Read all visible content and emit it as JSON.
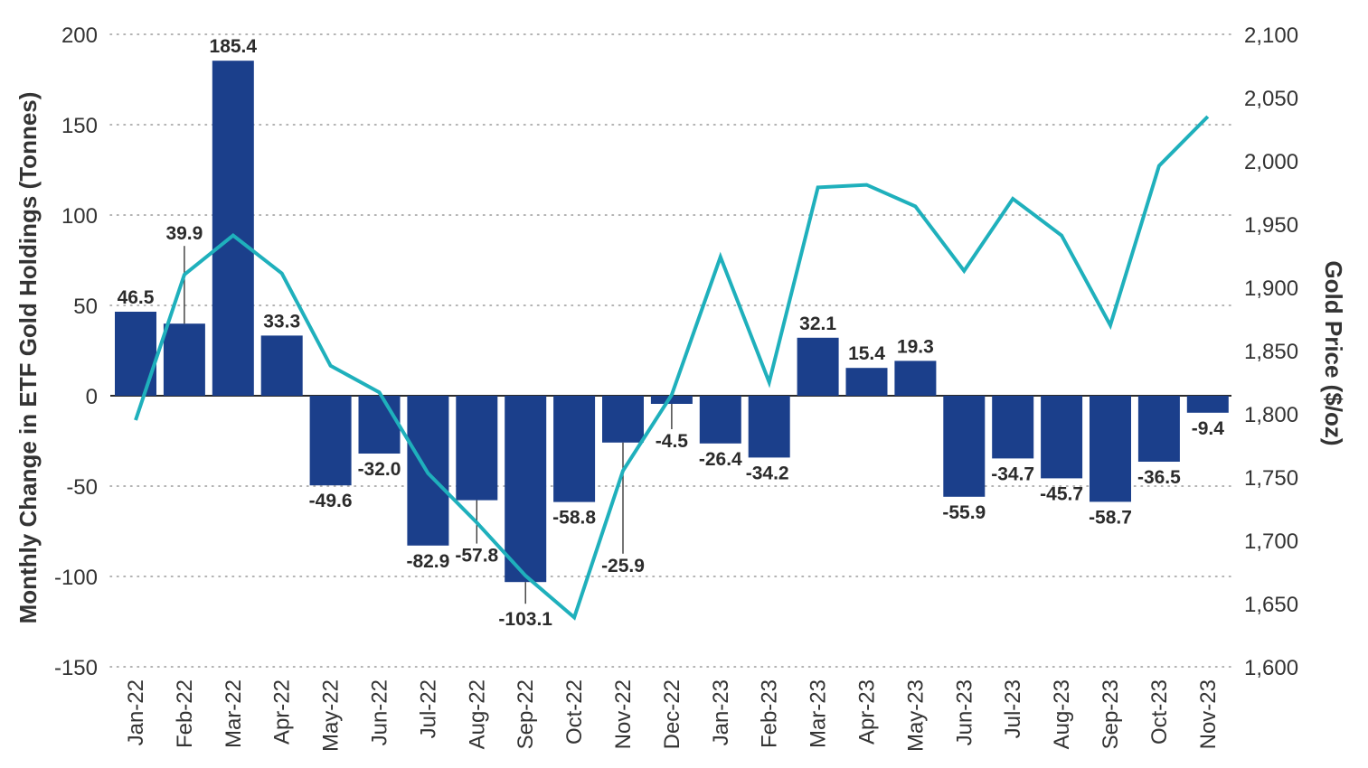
{
  "chart_data": {
    "type": "bar",
    "categories": [
      "Jan-22",
      "Feb-22",
      "Mar-22",
      "Apr-22",
      "May-22",
      "Jun-22",
      "Jul-22",
      "Aug-22",
      "Sep-22",
      "Oct-22",
      "Nov-22",
      "Dec-22",
      "Jan-23",
      "Feb-23",
      "Mar-23",
      "Apr-23",
      "May-23",
      "Jun-23",
      "Jul-23",
      "Aug-23",
      "Sep-23",
      "Oct-23",
      "Nov-23"
    ],
    "series": [
      {
        "type": "bar",
        "axis": "left",
        "color": "#1b3f8b",
        "values": [
          46.5,
          39.9,
          185.4,
          33.3,
          -49.6,
          -32.0,
          -82.9,
          -57.8,
          -103.1,
          -58.8,
          -25.9,
          -4.5,
          -26.4,
          -34.2,
          32.1,
          15.4,
          19.3,
          -55.9,
          -34.7,
          -45.7,
          -58.7,
          -36.5,
          -9.4
        ],
        "labels": [
          "46.5",
          "39.9",
          "185.4",
          "33.3",
          "-49.6",
          "-32.0",
          "-82.9",
          "-57.8",
          "-103.1",
          "-58.8",
          "-25.9",
          "-4.5",
          "-26.4",
          "-34.2",
          "32.1",
          "15.4",
          "19.3",
          "-55.9",
          "-34.7",
          "-45.7",
          "-58.7",
          "-36.5",
          "-9.4"
        ]
      },
      {
        "type": "line",
        "axis": "right",
        "color": "#1fb0bc",
        "values": [
          1795,
          1910,
          1941,
          1911,
          1838,
          1817,
          1753,
          1714,
          1672,
          1639,
          1755,
          1815,
          1924,
          1825,
          1979,
          1981,
          1964,
          1913,
          1970,
          1941,
          1870,
          1996,
          2035
        ]
      }
    ],
    "y_left": {
      "label": "Monthly Change in ETF Gold Holdings (Tonnes)",
      "lim": [
        -150,
        200
      ],
      "ticks": [
        "-150",
        "-100",
        "-50",
        "0",
        "50",
        "100",
        "150",
        "200"
      ]
    },
    "y_right": {
      "label": "Gold Price ($/oz)",
      "lim": [
        1600,
        2100
      ],
      "ticks": [
        "1,600",
        "1,650",
        "1,700",
        "1,750",
        "1,800",
        "1,850",
        "1,900",
        "1,950",
        "2,000",
        "2,050",
        "2,100"
      ]
    },
    "grid": "horizontal-dotted",
    "legend": "none"
  }
}
